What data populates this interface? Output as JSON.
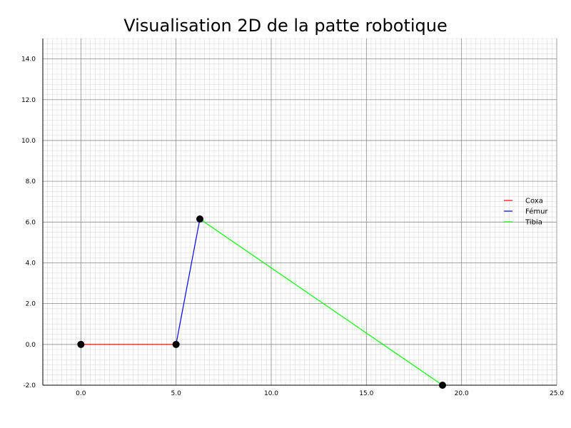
{
  "chart_data": {
    "type": "line",
    "title": "Visualisation 2D de la patte robotique",
    "xlabel": "",
    "ylabel": "",
    "xlim": [
      -2,
      25
    ],
    "ylim": [
      -2,
      15
    ],
    "x_ticks": [
      0,
      5,
      10,
      15,
      20,
      25
    ],
    "x_tick_labels": [
      "0.0",
      "5.0",
      "10.0",
      "15.0",
      "20.0",
      "25.0"
    ],
    "y_ticks": [
      -2,
      0,
      2,
      4,
      6,
      8,
      10,
      12,
      14
    ],
    "y_tick_labels": [
      "-2.0",
      "0.0",
      "2.0",
      "4.0",
      "6.0",
      "8.0",
      "10.0",
      "12.0",
      "14.0"
    ],
    "grid": true,
    "legend_position": "right",
    "series": [
      {
        "name": "Coxa",
        "color": "#ff0000",
        "points": [
          [
            0,
            0
          ],
          [
            5,
            0
          ]
        ]
      },
      {
        "name": "Fémur",
        "color": "#0000ff",
        "points": [
          [
            5,
            0
          ],
          [
            6.25,
            6.15
          ]
        ]
      },
      {
        "name": "Tibia",
        "color": "#00ff00",
        "points": [
          [
            6.25,
            6.15
          ],
          [
            19.0,
            -2.0
          ]
        ]
      }
    ],
    "joints": [
      [
        0,
        0
      ],
      [
        5,
        0
      ],
      [
        6.25,
        6.15
      ],
      [
        19.0,
        -2.0
      ]
    ]
  }
}
